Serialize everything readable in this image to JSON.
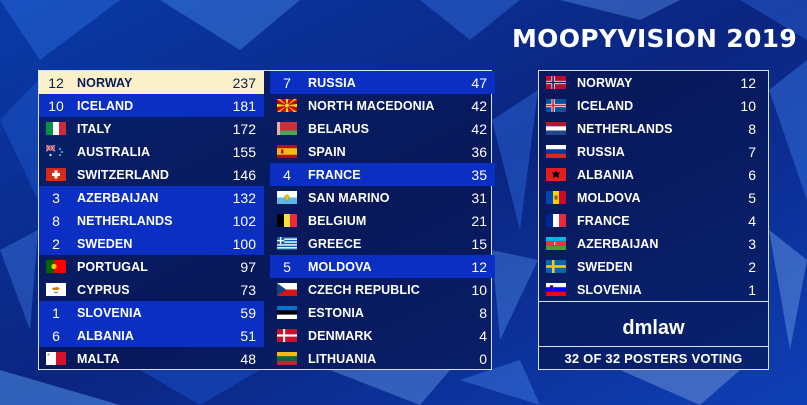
{
  "title": "MOOPYVISION 2019",
  "scoreboard": {
    "left": [
      {
        "points": "12",
        "country": "NORWAY",
        "score": "237",
        "style": "top"
      },
      {
        "points": "10",
        "country": "ICELAND",
        "score": "181",
        "style": "pts"
      },
      {
        "flag": "italy",
        "country": "ITALY",
        "score": "172"
      },
      {
        "flag": "australia",
        "country": "AUSTRALIA",
        "score": "155"
      },
      {
        "flag": "switzerland",
        "country": "SWITZERLAND",
        "score": "146"
      },
      {
        "points": "3",
        "country": "AZERBAIJAN",
        "score": "132",
        "style": "pts"
      },
      {
        "points": "8",
        "country": "NETHERLANDS",
        "score": "102",
        "style": "pts"
      },
      {
        "points": "2",
        "country": "SWEDEN",
        "score": "100",
        "style": "pts"
      },
      {
        "flag": "portugal",
        "country": "PORTUGAL",
        "score": "97"
      },
      {
        "flag": "cyprus",
        "country": "CYPRUS",
        "score": "73"
      },
      {
        "points": "1",
        "country": "SLOVENIA",
        "score": "59",
        "style": "pts"
      },
      {
        "points": "6",
        "country": "ALBANIA",
        "score": "51",
        "style": "pts"
      },
      {
        "flag": "malta",
        "country": "MALTA",
        "score": "48"
      }
    ],
    "right": [
      {
        "points": "7",
        "country": "RUSSIA",
        "score": "47",
        "style": "pts"
      },
      {
        "flag": "north-macedonia",
        "country": "NORTH MACEDONIA",
        "score": "42"
      },
      {
        "flag": "belarus",
        "country": "BELARUS",
        "score": "42"
      },
      {
        "flag": "spain",
        "country": "SPAIN",
        "score": "36"
      },
      {
        "points": "4",
        "country": "FRANCE",
        "score": "35",
        "style": "pts"
      },
      {
        "flag": "san-marino",
        "country": "SAN MARINO",
        "score": "31"
      },
      {
        "flag": "belgium",
        "country": "BELGIUM",
        "score": "21"
      },
      {
        "flag": "greece",
        "country": "GREECE",
        "score": "15"
      },
      {
        "points": "5",
        "country": "MOLDOVA",
        "score": "12",
        "style": "pts"
      },
      {
        "flag": "czech",
        "country": "CZECH REPUBLIC",
        "score": "10"
      },
      {
        "flag": "estonia",
        "country": "ESTONIA",
        "score": "8"
      },
      {
        "flag": "denmark",
        "country": "DENMARK",
        "score": "4"
      },
      {
        "flag": "lithuania",
        "country": "LITHUANIA",
        "score": "0"
      }
    ]
  },
  "votes_panel": {
    "rows": [
      {
        "flag": "norway",
        "country": "NORWAY",
        "points": "12"
      },
      {
        "flag": "iceland",
        "country": "ICELAND",
        "points": "10"
      },
      {
        "flag": "netherlands",
        "country": "NETHERLANDS",
        "points": "8"
      },
      {
        "flag": "russia",
        "country": "RUSSIA",
        "points": "7"
      },
      {
        "flag": "albania",
        "country": "ALBANIA",
        "points": "6"
      },
      {
        "flag": "moldova",
        "country": "MOLDOVA",
        "points": "5"
      },
      {
        "flag": "france",
        "country": "FRANCE",
        "points": "4"
      },
      {
        "flag": "azerbaijan",
        "country": "AZERBAIJAN",
        "points": "3"
      },
      {
        "flag": "sweden",
        "country": "SWEDEN",
        "points": "2"
      },
      {
        "flag": "slovenia",
        "country": "SLOVENIA",
        "points": "1"
      }
    ],
    "poster": "dmlaw",
    "voting_status": "32 OF 32 POSTERS VOTING"
  },
  "colors": {
    "background": "#0b2b8c",
    "points_row": "#0a2fc2",
    "leader_row": "#faf1c8",
    "border": "#d8e0ff"
  }
}
